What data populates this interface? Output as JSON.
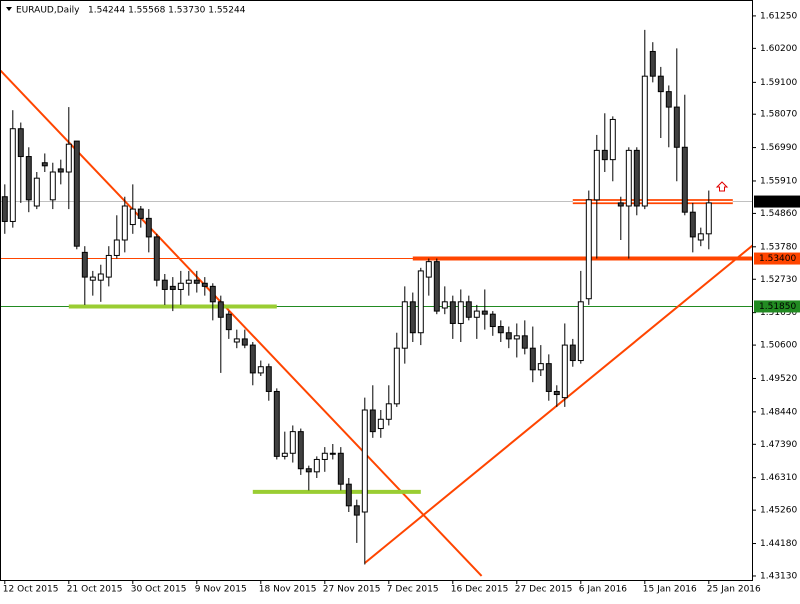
{
  "chart_data": {
    "type": "candlestick",
    "title": "EURAUD,Daily",
    "subtitle": "1.54244 1.55568 1.53730 1.55244",
    "up_color": "#ffffff",
    "down_color": "#404040",
    "wick_color": "#000000",
    "x": [
      0,
      1,
      2,
      3,
      4,
      5,
      6,
      7,
      8,
      9,
      10,
      11,
      12,
      13,
      14,
      15,
      16,
      17,
      18,
      19,
      20,
      21,
      22,
      23,
      24,
      25,
      26,
      27,
      28,
      29,
      30,
      31,
      32,
      33,
      34,
      35,
      36,
      37,
      38,
      39,
      40,
      41,
      42,
      43,
      44,
      45,
      46,
      47,
      48,
      49,
      50,
      51,
      52,
      53,
      54,
      55,
      56,
      57,
      58,
      59,
      60,
      61,
      62,
      63,
      64,
      65,
      66,
      67,
      68,
      69,
      70,
      71,
      72,
      73,
      74,
      75,
      76,
      77,
      78,
      79,
      80,
      81,
      82,
      83,
      84,
      85,
      86,
      87,
      88
    ],
    "open": [
      1.554,
      1.546,
      1.576,
      1.567,
      1.551,
      1.565,
      1.553,
      1.563,
      1.562,
      1.572,
      1.536,
      1.527,
      1.527,
      1.528,
      1.535,
      1.54,
      1.545,
      1.55,
      1.547,
      1.541,
      1.527,
      1.525,
      1.524,
      1.526,
      1.527,
      1.526,
      1.525,
      1.52,
      1.516,
      1.507,
      1.508,
      1.506,
      1.497,
      1.499,
      1.491,
      1.47,
      1.471,
      1.478,
      1.466,
      1.465,
      1.469,
      1.471,
      1.471,
      1.461,
      1.454,
      1.452,
      1.485,
      1.479,
      1.482,
      1.487,
      1.505,
      1.52,
      1.51,
      1.528,
      1.533,
      1.518,
      1.52,
      1.513,
      1.52,
      1.515,
      1.517,
      1.516,
      1.512,
      1.51,
      1.508,
      1.509,
      1.505,
      1.498,
      1.5,
      1.491,
      1.489,
      1.506,
      1.501,
      1.521,
      1.553,
      1.569,
      1.566,
      1.552,
      1.551,
      1.569,
      1.551,
      1.601,
      1.593,
      1.588,
      1.583,
      1.57,
      1.549,
      1.54,
      1.542
    ],
    "high": [
      1.558,
      1.582,
      1.578,
      1.57,
      1.562,
      1.568,
      1.565,
      1.566,
      1.583,
      1.572,
      1.538,
      1.53,
      1.532,
      1.538,
      1.548,
      1.554,
      1.558,
      1.551,
      1.55,
      1.542,
      1.529,
      1.528,
      1.53,
      1.53,
      1.53,
      1.528,
      1.526,
      1.522,
      1.517,
      1.511,
      1.511,
      1.507,
      1.501,
      1.5,
      1.492,
      1.478,
      1.48,
      1.479,
      1.467,
      1.47,
      1.473,
      1.474,
      1.473,
      1.463,
      1.456,
      1.489,
      1.493,
      1.485,
      1.493,
      1.51,
      1.525,
      1.523,
      1.531,
      1.534,
      1.534,
      1.525,
      1.522,
      1.524,
      1.522,
      1.519,
      1.524,
      1.517,
      1.514,
      1.512,
      1.513,
      1.514,
      1.512,
      1.506,
      1.503,
      1.493,
      1.513,
      1.508,
      1.53,
      1.556,
      1.574,
      1.581,
      1.58,
      1.554,
      1.57,
      1.57,
      1.608,
      1.604,
      1.596,
      1.59,
      1.602,
      1.587,
      1.552,
      1.544,
      1.556
    ],
    "low": [
      1.542,
      1.544,
      1.552,
      1.549,
      1.55,
      1.562,
      1.55,
      1.558,
      1.55,
      1.537,
      1.519,
      1.522,
      1.52,
      1.525,
      1.534,
      1.536,
      1.542,
      1.544,
      1.536,
      1.525,
      1.519,
      1.517,
      1.519,
      1.522,
      1.523,
      1.522,
      1.514,
      1.497,
      1.508,
      1.505,
      1.505,
      1.493,
      1.496,
      1.488,
      1.469,
      1.469,
      1.468,
      1.464,
      1.459,
      1.463,
      1.465,
      1.469,
      1.459,
      1.452,
      1.442,
      1.435,
      1.476,
      1.476,
      1.48,
      1.486,
      1.5,
      1.507,
      1.506,
      1.522,
      1.516,
      1.516,
      1.508,
      1.507,
      1.514,
      1.508,
      1.511,
      1.509,
      1.507,
      1.505,
      1.502,
      1.503,
      1.494,
      1.496,
      1.488,
      1.486,
      1.486,
      1.499,
      1.5,
      1.519,
      1.534,
      1.562,
      1.559,
      1.54,
      1.534,
      1.548,
      1.55,
      1.591,
      1.573,
      1.57,
      1.559,
      1.548,
      1.536,
      1.538,
      1.537
    ],
    "close": [
      1.546,
      1.576,
      1.567,
      1.553,
      1.56,
      1.564,
      1.562,
      1.562,
      1.571,
      1.538,
      1.528,
      1.528,
      1.529,
      1.535,
      1.54,
      1.551,
      1.55,
      1.547,
      1.541,
      1.527,
      1.524,
      1.524,
      1.526,
      1.527,
      1.526,
      1.525,
      1.52,
      1.515,
      1.511,
      1.508,
      1.506,
      1.497,
      1.499,
      1.491,
      1.47,
      1.471,
      1.478,
      1.466,
      1.465,
      1.469,
      1.471,
      1.471,
      1.461,
      1.454,
      1.451,
      1.485,
      1.478,
      1.482,
      1.487,
      1.505,
      1.52,
      1.51,
      1.53,
      1.533,
      1.517,
      1.52,
      1.513,
      1.52,
      1.515,
      1.517,
      1.516,
      1.512,
      1.51,
      1.508,
      1.509,
      1.505,
      1.498,
      1.5,
      1.491,
      1.49,
      1.506,
      1.501,
      1.52,
      1.553,
      1.569,
      1.566,
      1.579,
      1.551,
      1.569,
      1.551,
      1.593,
      1.593,
      1.588,
      1.583,
      1.57,
      1.549,
      1.541,
      1.542,
      1.552
    ],
    "xlim": [
      -0.6,
      93.4
    ],
    "ylim": [
      1.43,
      1.617
    ],
    "xticks": [
      {
        "value": 0,
        "label": "12 Oct 2015"
      },
      {
        "value": 8,
        "label": "21 Oct 2015"
      },
      {
        "value": 16,
        "label": "30 Oct 2015"
      },
      {
        "value": 24,
        "label": "9 Nov 2015"
      },
      {
        "value": 32,
        "label": "18 Nov 2015"
      },
      {
        "value": 40,
        "label": "27 Nov 2015"
      },
      {
        "value": 48,
        "label": "7 Dec 2015"
      },
      {
        "value": 56,
        "label": "16 Dec 2015"
      },
      {
        "value": 64,
        "label": "27 Dec 2015"
      },
      {
        "value": 72,
        "label": "6 Jan 2016"
      },
      {
        "value": 80,
        "label": "15 Jan 2016"
      },
      {
        "value": 88,
        "label": "25 Jan 2016"
      }
    ],
    "yticks": [
      {
        "value": 1.6125,
        "label": "1.61250"
      },
      {
        "value": 1.602,
        "label": "1.60200"
      },
      {
        "value": 1.591,
        "label": "1.59100"
      },
      {
        "value": 1.5807,
        "label": "1.58070"
      },
      {
        "value": 1.5699,
        "label": "1.56990"
      },
      {
        "value": 1.5591,
        "label": "1.55910"
      },
      {
        "value": 1.5486,
        "label": "1.54860"
      },
      {
        "value": 1.5378,
        "label": "1.53780"
      },
      {
        "value": 1.5273,
        "label": "1.52730"
      },
      {
        "value": 1.5165,
        "label": "1.51650"
      },
      {
        "value": 1.506,
        "label": "1.50600"
      },
      {
        "value": 1.4952,
        "label": "1.49520"
      },
      {
        "value": 1.4844,
        "label": "1.48440"
      },
      {
        "value": 1.4739,
        "label": "1.47390"
      },
      {
        "value": 1.4631,
        "label": "1.46310"
      },
      {
        "value": 1.4526,
        "label": "1.45260"
      },
      {
        "value": 1.4418,
        "label": "1.44180"
      },
      {
        "value": 1.4313,
        "label": "1.43130"
      }
    ],
    "levels": [
      {
        "value": 1.55244,
        "color": "#c0c0c0",
        "label_color": "#000000"
      },
      {
        "value": 1.534,
        "label": "1.53400",
        "color": "#ff4500",
        "label_color": "#ff4500"
      },
      {
        "value": 1.5185,
        "label": "1.51850",
        "color": "#228b22",
        "label_color": "#228b22"
      }
    ],
    "lines": [
      {
        "x": [
          -0.6,
          59.6
        ],
        "y": [
          1.595,
          1.4313
        ],
        "color": "#ff4500",
        "style": "thin"
      },
      {
        "x": [
          45,
          94.3
        ],
        "y": [
          1.4355,
          1.54
        ],
        "color": "#ff4500",
        "style": "thin"
      },
      {
        "x": [
          8,
          34
        ],
        "y": [
          1.5185,
          1.5185
        ],
        "color": "#9acd32",
        "style": "thick"
      },
      {
        "x": [
          31,
          52
        ],
        "y": [
          1.4585,
          1.4585
        ],
        "color": "#9acd32",
        "style": "thick"
      },
      {
        "x": [
          51,
          94
        ],
        "y": [
          1.534,
          1.534
        ],
        "color": "#ff4500",
        "style": "thick"
      },
      {
        "x": [
          71,
          91
        ],
        "y": [
          1.5524,
          1.5524
        ],
        "color": "#ff4500",
        "style": "double"
      }
    ]
  }
}
